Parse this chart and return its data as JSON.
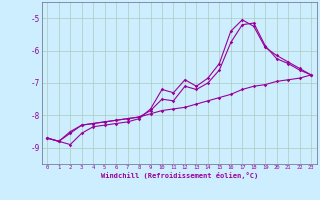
{
  "bg_color": "#cceeff",
  "line_color": "#990099",
  "grid_color": "#aaccbb",
  "xlim": [
    -0.5,
    23.5
  ],
  "ylim": [
    -9.5,
    -4.5
  ],
  "yticks": [
    -9,
    -8,
    -7,
    -6,
    -5
  ],
  "xticks": [
    0,
    1,
    2,
    3,
    4,
    5,
    6,
    7,
    8,
    9,
    10,
    11,
    12,
    13,
    14,
    15,
    16,
    17,
    18,
    19,
    20,
    21,
    22,
    23
  ],
  "xlabel": "Windchill (Refroidissement éolien,°C)",
  "line1_x": [
    0,
    1,
    2,
    3,
    4,
    5,
    6,
    7,
    8,
    9,
    10,
    11,
    12,
    13,
    14,
    15,
    16,
    17,
    18,
    19,
    20,
    21,
    22,
    23
  ],
  "line1_y": [
    -8.7,
    -8.8,
    -8.55,
    -8.3,
    -8.25,
    -8.2,
    -8.15,
    -8.1,
    -8.05,
    -7.95,
    -7.85,
    -7.8,
    -7.75,
    -7.65,
    -7.55,
    -7.45,
    -7.35,
    -7.2,
    -7.1,
    -7.05,
    -6.95,
    -6.9,
    -6.85,
    -6.75
  ],
  "line2_x": [
    0,
    1,
    2,
    3,
    4,
    5,
    6,
    7,
    8,
    9,
    10,
    11,
    12,
    13,
    14,
    15,
    16,
    17,
    18,
    19,
    20,
    21,
    22,
    23
  ],
  "line2_y": [
    -8.7,
    -8.8,
    -8.9,
    -8.55,
    -8.35,
    -8.3,
    -8.25,
    -8.2,
    -8.1,
    -7.8,
    -7.2,
    -7.3,
    -6.9,
    -7.1,
    -6.85,
    -6.4,
    -5.4,
    -5.05,
    -5.25,
    -5.9,
    -6.15,
    -6.35,
    -6.55,
    -6.75
  ],
  "line3_x": [
    0,
    1,
    2,
    3,
    4,
    5,
    6,
    7,
    8,
    9,
    10,
    11,
    12,
    13,
    14,
    15,
    16,
    17,
    18,
    19,
    20,
    21,
    22,
    23
  ],
  "line3_y": [
    -8.7,
    -8.8,
    -8.5,
    -8.3,
    -8.25,
    -8.2,
    -8.15,
    -8.1,
    -8.05,
    -7.85,
    -7.5,
    -7.55,
    -7.1,
    -7.2,
    -7.0,
    -6.6,
    -5.75,
    -5.2,
    -5.15,
    -5.85,
    -6.25,
    -6.4,
    -6.6,
    -6.75
  ]
}
